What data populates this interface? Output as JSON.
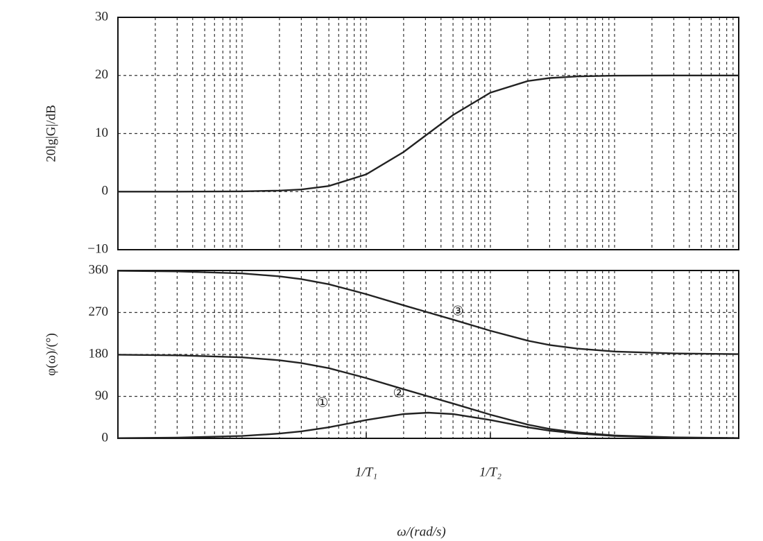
{
  "chart_data": [
    {
      "type": "line",
      "xscale": "log",
      "grid": true,
      "ylabel": "20lg|G|/dB",
      "xlim": [
        0.01,
        1000
      ],
      "ylim": [
        -10,
        30
      ],
      "yticks": [
        {
          "value": -10,
          "label": "−10"
        },
        0,
        10,
        20,
        30
      ],
      "x": [
        0.01,
        0.03,
        0.1,
        0.2,
        0.3,
        0.5,
        1,
        2,
        3.16,
        5,
        10,
        20,
        30,
        50,
        100,
        300,
        1000
      ],
      "series": [
        {
          "color": "#222",
          "values": [
            0,
            0,
            0.04,
            0.17,
            0.37,
            0.96,
            2.97,
            6.82,
            10.0,
            13.18,
            17.03,
            19.04,
            19.55,
            19.83,
            19.96,
            20,
            20
          ]
        }
      ]
    },
    {
      "type": "line",
      "xscale": "log",
      "grid": true,
      "ylabel": "φ(ω)/(°)",
      "xlabel": "ω/(rad/s)",
      "xlim": [
        0.01,
        1000
      ],
      "ylim": [
        0,
        360
      ],
      "yticks": [
        0,
        90,
        180,
        270,
        360
      ],
      "xticks": [
        {
          "value": 1,
          "label": "1/T₁"
        },
        {
          "value": 10,
          "label": "1/T₂"
        }
      ],
      "x": [
        0.01,
        0.03,
        0.1,
        0.2,
        0.3,
        0.5,
        1,
        2,
        3.16,
        5,
        10,
        20,
        30,
        50,
        100,
        300,
        1000
      ],
      "series": [
        {
          "name": "①",
          "color": "#222",
          "values": [
            0.5,
            1.5,
            5.1,
            10.2,
            15.0,
            23.7,
            39.3,
            52.1,
            55.0,
            52.1,
            39.3,
            23.7,
            16.5,
            10.2,
            5.1,
            1.7,
            0.5
          ]
        },
        {
          "name": "②",
          "color": "#222",
          "values": [
            179.4,
            178.1,
            173.7,
            167.5,
            161.6,
            150.6,
            129.3,
            105.3,
            90.0,
            74.7,
            50.7,
            29.4,
            20.3,
            12.5,
            6.3,
            2.1,
            0.6
          ]
        },
        {
          "name": "③",
          "color": "#222",
          "values": [
            359.4,
            358.1,
            353.7,
            347.5,
            341.6,
            330.6,
            309.3,
            285.3,
            270.0,
            254.7,
            230.7,
            209.4,
            200.3,
            192.5,
            186.3,
            182.1,
            180.6
          ]
        }
      ]
    }
  ]
}
